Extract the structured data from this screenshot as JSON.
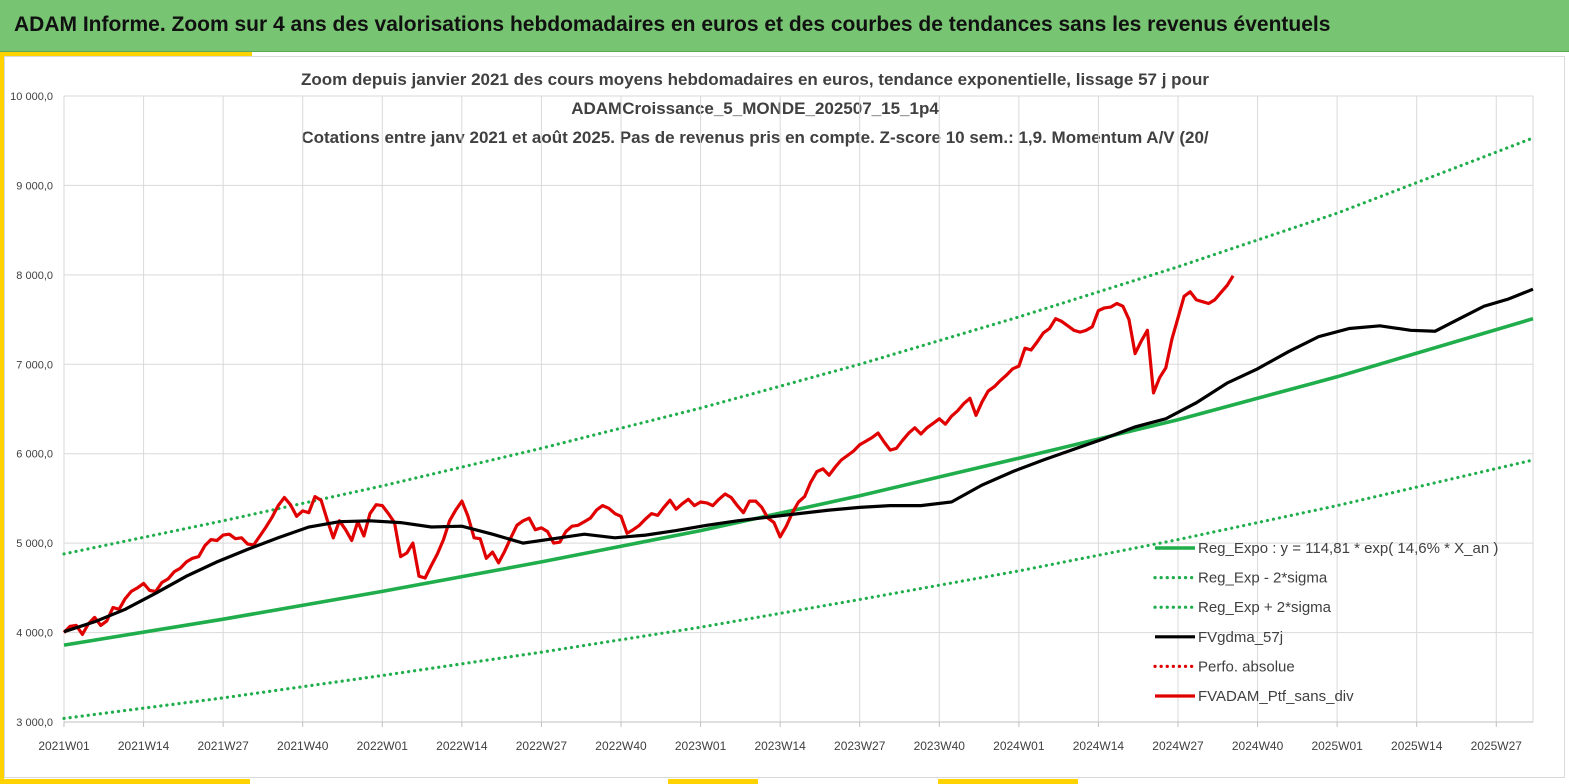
{
  "header": {
    "title": "ADAM Informe. Zoom sur 4 ans des valorisations hebdomadaires en euros et des courbes de tendances sans les revenus éventuels"
  },
  "colors": {
    "banner": "#77c472",
    "accent": "#ffd200",
    "reg_expo": "#1fae4b",
    "sigma": "#1fae4b",
    "gdma": "#000000",
    "perfo": "#e00000",
    "ptf": "#e00000"
  },
  "chart_data": {
    "type": "line",
    "title_lines": [
      "Zoom depuis janvier 2021 des cours moyens hebdomadaires  en euros, tendance exponentielle, lissage 57 j pour",
      "ADAMCroissance_5_MONDE_202507_15_1p4",
      "Cotations entre janv 2021 et août 2025. Pas de revenus pris en compte. Z-score 10 sem.: 1,9. Momentum A/V (20/"
    ],
    "ylim": [
      3000,
      10000
    ],
    "yticks": [
      "3 000,0",
      "4 000,0",
      "5 000,0",
      "6 000,0",
      "7 000,0",
      "8 000,0",
      "9 000,0",
      "10 000,0"
    ],
    "x_range_weeks": [
      0,
      240
    ],
    "xticks": [
      {
        "label": "2021W01",
        "week": 0
      },
      {
        "label": "2021W14",
        "week": 13
      },
      {
        "label": "2021W27",
        "week": 26
      },
      {
        "label": "2021W40",
        "week": 39
      },
      {
        "label": "2022W01",
        "week": 52
      },
      {
        "label": "2022W14",
        "week": 65
      },
      {
        "label": "2022W27",
        "week": 78
      },
      {
        "label": "2022W40",
        "week": 91
      },
      {
        "label": "2023W01",
        "week": 104
      },
      {
        "label": "2023W14",
        "week": 117
      },
      {
        "label": "2023W27",
        "week": 130
      },
      {
        "label": "2023W40",
        "week": 143
      },
      {
        "label": "2024W01",
        "week": 156
      },
      {
        "label": "2024W14",
        "week": 169
      },
      {
        "label": "2024W27",
        "week": 182
      },
      {
        "label": "2024W40",
        "week": 195
      },
      {
        "label": "2025W01",
        "week": 208
      },
      {
        "label": "2025W14",
        "week": 221
      },
      {
        "label": "2025W27",
        "week": 234
      }
    ],
    "grid": true,
    "legend_position": "bottom-right",
    "series": [
      {
        "name": "Reg_Expo : y = 114,81 * exp( 14,6% *  X_an )",
        "key": "reg_expo",
        "style": "solid",
        "points": [
          [
            0,
            3860
          ],
          [
            26,
            4150
          ],
          [
            52,
            4460
          ],
          [
            78,
            4790
          ],
          [
            104,
            5140
          ],
          [
            130,
            5530
          ],
          [
            156,
            5950
          ],
          [
            182,
            6380
          ],
          [
            208,
            6860
          ],
          [
            240,
            7510
          ]
        ]
      },
      {
        "name": "Reg_Exp - 2*sigma",
        "key": "sigma_low",
        "style": "dotted",
        "points": [
          [
            0,
            3040
          ],
          [
            26,
            3270
          ],
          [
            52,
            3520
          ],
          [
            78,
            3780
          ],
          [
            104,
            4060
          ],
          [
            130,
            4370
          ],
          [
            156,
            4690
          ],
          [
            182,
            5040
          ],
          [
            208,
            5420
          ],
          [
            240,
            5930
          ]
        ]
      },
      {
        "name": "Reg_Exp + 2*sigma",
        "key": "sigma_high",
        "style": "dotted",
        "points": [
          [
            0,
            4880
          ],
          [
            26,
            5250
          ],
          [
            52,
            5640
          ],
          [
            78,
            6060
          ],
          [
            104,
            6510
          ],
          [
            130,
            7000
          ],
          [
            156,
            7530
          ],
          [
            182,
            8090
          ],
          [
            208,
            8690
          ],
          [
            240,
            9530
          ]
        ]
      },
      {
        "name": "FVgdma_57j",
        "key": "gdma",
        "style": "solid",
        "points": [
          [
            0,
            4010
          ],
          [
            5,
            4120
          ],
          [
            10,
            4260
          ],
          [
            15,
            4440
          ],
          [
            20,
            4630
          ],
          [
            25,
            4790
          ],
          [
            30,
            4930
          ],
          [
            35,
            5060
          ],
          [
            40,
            5180
          ],
          [
            45,
            5240
          ],
          [
            50,
            5250
          ],
          [
            55,
            5230
          ],
          [
            60,
            5180
          ],
          [
            65,
            5190
          ],
          [
            70,
            5100
          ],
          [
            75,
            5000
          ],
          [
            80,
            5050
          ],
          [
            85,
            5100
          ],
          [
            90,
            5060
          ],
          [
            95,
            5090
          ],
          [
            100,
            5140
          ],
          [
            105,
            5200
          ],
          [
            110,
            5250
          ],
          [
            115,
            5290
          ],
          [
            120,
            5330
          ],
          [
            125,
            5370
          ],
          [
            130,
            5400
          ],
          [
            135,
            5420
          ],
          [
            140,
            5420
          ],
          [
            145,
            5460
          ],
          [
            150,
            5650
          ],
          [
            155,
            5800
          ],
          [
            160,
            5930
          ],
          [
            165,
            6050
          ],
          [
            170,
            6170
          ],
          [
            175,
            6300
          ],
          [
            180,
            6390
          ],
          [
            185,
            6570
          ],
          [
            190,
            6790
          ],
          [
            195,
            6950
          ],
          [
            200,
            7140
          ],
          [
            205,
            7310
          ],
          [
            210,
            7400
          ],
          [
            215,
            7430
          ],
          [
            220,
            7380
          ],
          [
            224,
            7370
          ],
          [
            228,
            7510
          ],
          [
            232,
            7650
          ],
          [
            236,
            7730
          ],
          [
            240,
            7840
          ]
        ]
      },
      {
        "name": "Perfo. absolue",
        "key": "perfo",
        "style": "dotted",
        "points": []
      },
      {
        "name": "FVADAM_Ptf_sans_div",
        "key": "ptf",
        "style": "solid",
        "points": [
          [
            0,
            4000
          ],
          [
            1,
            4070
          ],
          [
            2,
            4080
          ],
          [
            3,
            3980
          ],
          [
            4,
            4100
          ],
          [
            5,
            4170
          ],
          [
            6,
            4080
          ],
          [
            7,
            4130
          ],
          [
            8,
            4280
          ],
          [
            9,
            4260
          ],
          [
            10,
            4380
          ],
          [
            11,
            4460
          ],
          [
            12,
            4500
          ],
          [
            13,
            4550
          ],
          [
            14,
            4470
          ],
          [
            15,
            4460
          ],
          [
            16,
            4560
          ],
          [
            17,
            4600
          ],
          [
            18,
            4680
          ],
          [
            19,
            4720
          ],
          [
            20,
            4790
          ],
          [
            21,
            4830
          ],
          [
            22,
            4850
          ],
          [
            23,
            4970
          ],
          [
            24,
            5040
          ],
          [
            25,
            5030
          ],
          [
            26,
            5090
          ],
          [
            27,
            5100
          ],
          [
            28,
            5050
          ],
          [
            29,
            5060
          ],
          [
            30,
            4990
          ],
          [
            31,
            4980
          ],
          [
            32,
            5080
          ],
          [
            33,
            5180
          ],
          [
            34,
            5290
          ],
          [
            35,
            5420
          ],
          [
            36,
            5510
          ],
          [
            37,
            5430
          ],
          [
            38,
            5300
          ],
          [
            39,
            5360
          ],
          [
            40,
            5340
          ],
          [
            41,
            5520
          ],
          [
            42,
            5480
          ],
          [
            43,
            5260
          ],
          [
            44,
            5060
          ],
          [
            45,
            5250
          ],
          [
            46,
            5150
          ],
          [
            47,
            5030
          ],
          [
            48,
            5240
          ],
          [
            49,
            5080
          ],
          [
            50,
            5330
          ],
          [
            51,
            5430
          ],
          [
            52,
            5420
          ],
          [
            53,
            5330
          ],
          [
            54,
            5230
          ],
          [
            55,
            4850
          ],
          [
            56,
            4890
          ],
          [
            57,
            5000
          ],
          [
            58,
            4630
          ],
          [
            59,
            4610
          ],
          [
            60,
            4750
          ],
          [
            61,
            4880
          ],
          [
            62,
            5040
          ],
          [
            63,
            5250
          ],
          [
            64,
            5370
          ],
          [
            65,
            5470
          ],
          [
            66,
            5300
          ],
          [
            67,
            5060
          ],
          [
            68,
            5050
          ],
          [
            69,
            4830
          ],
          [
            70,
            4900
          ],
          [
            71,
            4780
          ],
          [
            72,
            4910
          ],
          [
            73,
            5060
          ],
          [
            74,
            5200
          ],
          [
            75,
            5250
          ],
          [
            76,
            5280
          ],
          [
            77,
            5150
          ],
          [
            78,
            5170
          ],
          [
            79,
            5130
          ],
          [
            80,
            5000
          ],
          [
            81,
            5010
          ],
          [
            82,
            5130
          ],
          [
            83,
            5190
          ],
          [
            84,
            5200
          ],
          [
            85,
            5240
          ],
          [
            86,
            5280
          ],
          [
            87,
            5370
          ],
          [
            88,
            5420
          ],
          [
            89,
            5390
          ],
          [
            90,
            5330
          ],
          [
            91,
            5300
          ],
          [
            92,
            5110
          ],
          [
            93,
            5150
          ],
          [
            94,
            5200
          ],
          [
            95,
            5270
          ],
          [
            96,
            5330
          ],
          [
            97,
            5310
          ],
          [
            98,
            5400
          ],
          [
            99,
            5480
          ],
          [
            100,
            5380
          ],
          [
            101,
            5440
          ],
          [
            102,
            5490
          ],
          [
            103,
            5420
          ],
          [
            104,
            5460
          ],
          [
            105,
            5450
          ],
          [
            106,
            5420
          ],
          [
            107,
            5490
          ],
          [
            108,
            5550
          ],
          [
            109,
            5510
          ],
          [
            110,
            5420
          ],
          [
            111,
            5340
          ],
          [
            112,
            5470
          ],
          [
            113,
            5470
          ],
          [
            114,
            5400
          ],
          [
            115,
            5280
          ],
          [
            116,
            5230
          ],
          [
            117,
            5070
          ],
          [
            118,
            5190
          ],
          [
            119,
            5340
          ],
          [
            120,
            5460
          ],
          [
            121,
            5520
          ],
          [
            122,
            5680
          ],
          [
            123,
            5800
          ],
          [
            124,
            5830
          ],
          [
            125,
            5760
          ],
          [
            126,
            5850
          ],
          [
            127,
            5930
          ],
          [
            128,
            5980
          ],
          [
            129,
            6030
          ],
          [
            130,
            6100
          ],
          [
            131,
            6140
          ],
          [
            132,
            6180
          ],
          [
            133,
            6230
          ],
          [
            134,
            6130
          ],
          [
            135,
            6040
          ],
          [
            136,
            6060
          ],
          [
            137,
            6150
          ],
          [
            138,
            6230
          ],
          [
            139,
            6290
          ],
          [
            140,
            6220
          ],
          [
            141,
            6290
          ],
          [
            142,
            6340
          ],
          [
            143,
            6390
          ],
          [
            144,
            6330
          ],
          [
            145,
            6420
          ],
          [
            146,
            6480
          ],
          [
            147,
            6560
          ],
          [
            148,
            6620
          ],
          [
            149,
            6430
          ],
          [
            150,
            6580
          ],
          [
            151,
            6700
          ],
          [
            152,
            6750
          ],
          [
            153,
            6820
          ],
          [
            154,
            6880
          ],
          [
            155,
            6950
          ],
          [
            156,
            6980
          ],
          [
            157,
            7180
          ],
          [
            158,
            7160
          ],
          [
            159,
            7250
          ],
          [
            160,
            7350
          ],
          [
            161,
            7400
          ],
          [
            162,
            7510
          ],
          [
            163,
            7480
          ],
          [
            164,
            7430
          ],
          [
            165,
            7380
          ],
          [
            166,
            7360
          ],
          [
            167,
            7380
          ],
          [
            168,
            7420
          ],
          [
            169,
            7600
          ],
          [
            170,
            7630
          ],
          [
            171,
            7640
          ],
          [
            172,
            7680
          ],
          [
            173,
            7650
          ],
          [
            174,
            7500
          ],
          [
            175,
            7120
          ],
          [
            176,
            7260
          ],
          [
            177,
            7380
          ],
          [
            178,
            6680
          ],
          [
            179,
            6850
          ],
          [
            180,
            6960
          ],
          [
            181,
            7280
          ],
          [
            182,
            7520
          ],
          [
            183,
            7760
          ],
          [
            184,
            7810
          ],
          [
            185,
            7720
          ],
          [
            186,
            7700
          ],
          [
            187,
            7680
          ],
          [
            188,
            7720
          ],
          [
            189,
            7800
          ],
          [
            190,
            7880
          ],
          [
            191,
            7990
          ]
        ]
      }
    ]
  }
}
